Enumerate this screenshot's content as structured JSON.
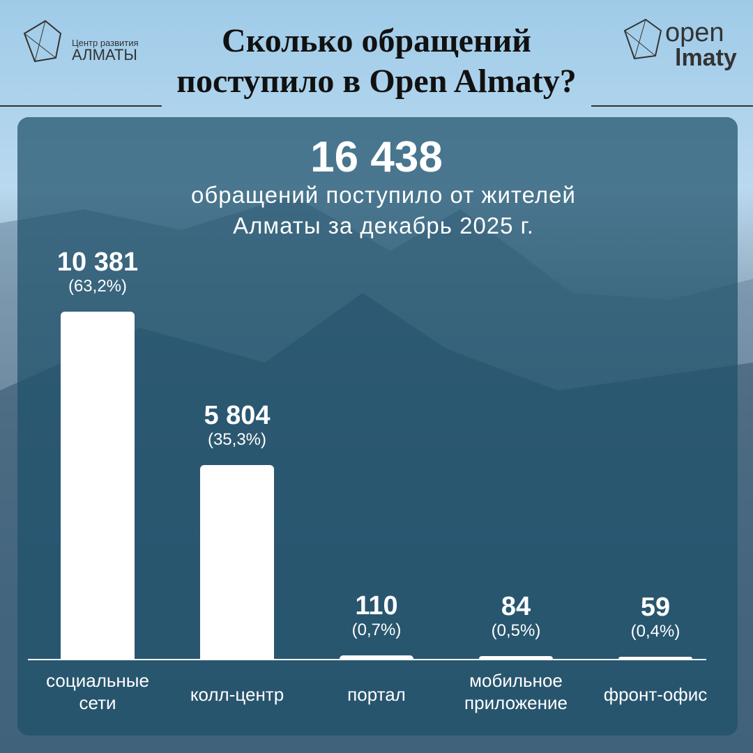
{
  "header": {
    "title": "Сколько обращений поступило в Open Almaty?",
    "logo_left": {
      "line1": "Центр развития",
      "line2": "АЛМАТЫ"
    },
    "logo_right": {
      "line1": "open",
      "line2": "lmaty"
    }
  },
  "chart_data": {
    "type": "bar",
    "total": "16 438",
    "subtitle": "обращений поступило от жителей Алматы за декабрь 2025 г.",
    "categories": [
      "социальные сети",
      "колл-центр",
      "портал",
      "мобильное приложение",
      "фронт-офис"
    ],
    "values": [
      10381,
      5804,
      110,
      84,
      59
    ],
    "value_labels": [
      "10 381",
      "5 804",
      "110",
      "84",
      "59"
    ],
    "percent_labels": [
      "(63,2%)",
      "(35,3%)",
      "(0,7%)",
      "(0,5%)",
      "(0,4%)"
    ],
    "color": "#ffffff"
  }
}
